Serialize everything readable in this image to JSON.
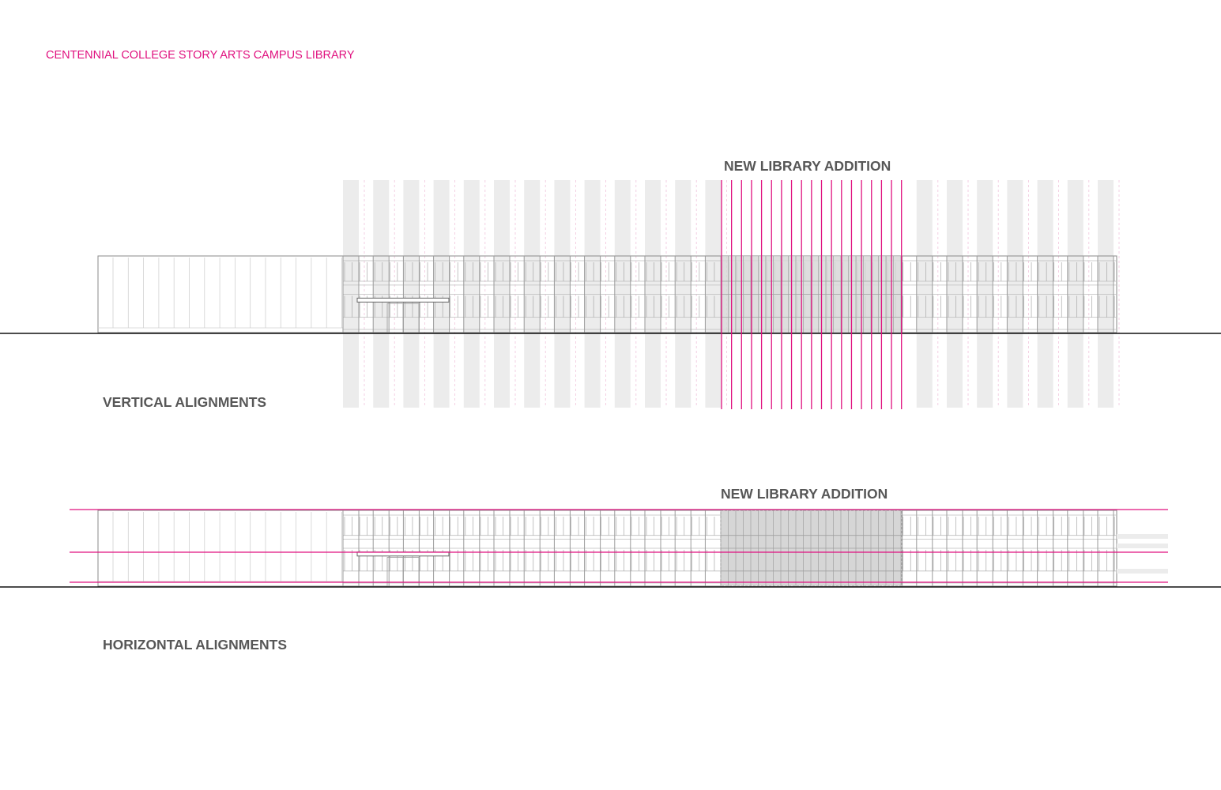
{
  "title": "CENTENNIAL COLLEGE STORY ARTS CAMPUS LIBRARY",
  "top_diagram": {
    "addition_label": "NEW LIBRARY ADDITION",
    "caption": "VERTICAL ALIGNMENTS"
  },
  "bottom_diagram": {
    "addition_label": "NEW LIBRARY ADDITION",
    "caption": "HORIZONTAL ALIGNMENTS"
  },
  "colors": {
    "accent": "#e0117f",
    "label": "#575757",
    "line": "#8a8a8a",
    "shade": "#ececec",
    "addition_fill": "#d6d6d6"
  }
}
